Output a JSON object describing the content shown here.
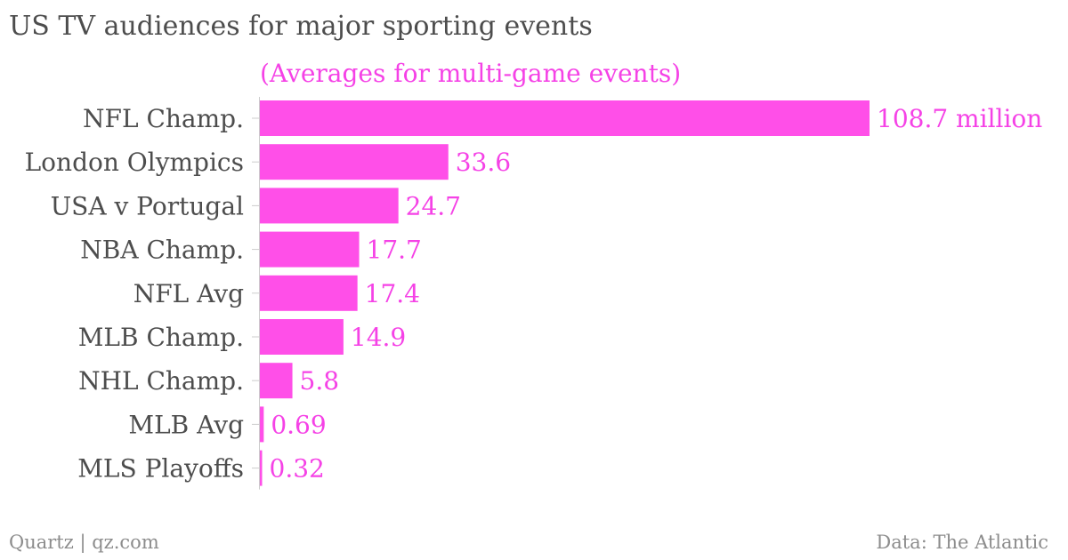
{
  "title": "US TV audiences for major sporting events",
  "footer": {
    "left": "Quartz | qz.com",
    "right": "Data: The Atlantic"
  },
  "colors": {
    "bar": "#ff4fe8",
    "value_label": "#f542e6",
    "text": "#4d4d4d",
    "axis": "#cccccc",
    "footer": "#8c8c8c"
  },
  "chart_data": {
    "type": "bar",
    "orientation": "horizontal",
    "subtitle": "(Averages for multi-game events)",
    "categories": [
      "NFL Champ.",
      "London Olympics",
      "USA v Portugal",
      "NBA Champ.",
      "NFL Avg",
      "MLB Champ.",
      "NHL Champ.",
      "MLB Avg",
      "MLS Playoffs"
    ],
    "values": [
      108.7,
      33.6,
      24.7,
      17.7,
      17.4,
      14.9,
      5.8,
      0.69,
      0.32
    ],
    "value_labels": [
      "108.7 million",
      "33.6",
      "24.7",
      "17.7",
      "17.4",
      "14.9",
      "5.8",
      "0.69",
      "0.32"
    ],
    "xlim": [
      0,
      108.7
    ],
    "grid": false,
    "legend": "none"
  }
}
